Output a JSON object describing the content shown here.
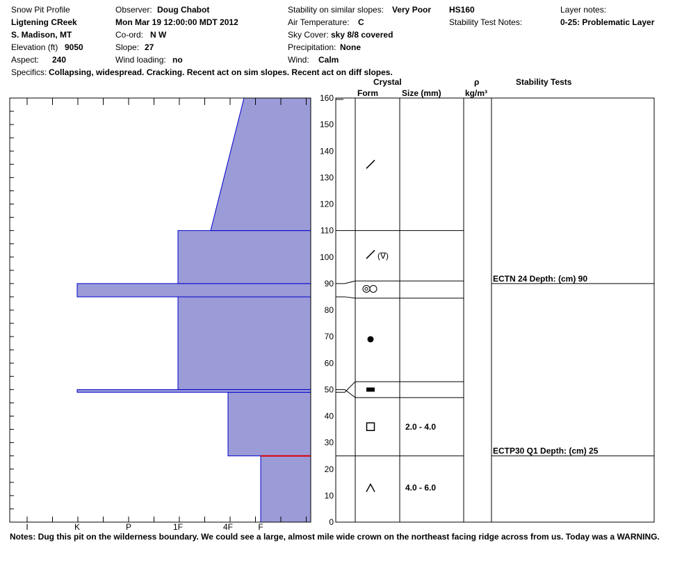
{
  "header": {
    "title": "Snow Pit Profile",
    "location": "Ligtening CReek",
    "region": "S. Madison, MT",
    "elevation_label": "Elevation (ft)",
    "elevation": "9050",
    "aspect_label": "Aspect:",
    "aspect": "240",
    "specifics_label": "Specifics:",
    "specifics": "Collapsing, widespread. Cracking. Recent act on sim slopes. Recent act on diff slopes.",
    "observer_label": "Observer:",
    "observer": "Doug Chabot",
    "date": "Mon Mar 19 12:00:00 MDT 2012",
    "coord_label": "Co-ord:",
    "coord": "N  W",
    "slope_label": "Slope:",
    "slope": "27",
    "wind_loading_label": "Wind loading:",
    "wind_loading": "no",
    "stability_label": "Stability on similar slopes:",
    "stability": "Very Poor",
    "air_temp_label": "Air Temperature:",
    "air_temp": "C",
    "sky_label": "Sky Cover:",
    "sky": "sky 8/8 covered",
    "precip_label": "Precipitation:",
    "precip": "None",
    "wind_label": "Wind:",
    "wind": "Calm",
    "hs": "HS160",
    "stability_test_notes_label": "Stability Test Notes:",
    "layer_notes_label": "Layer notes:",
    "layer_notes": "0-25: Problematic Layer"
  },
  "columns": {
    "crystal": "Crystal",
    "form": "Form",
    "size": "Size (mm)",
    "rho": "ρ",
    "density_unit": "kg/m³",
    "stability_tests": "Stability Tests"
  },
  "notes": "Notes:  Dug this pit on the wilderness boundary. We could see a large, almost mile wide crown on the northeast facing ridge across from us.  Today was a WARNING.",
  "colors": {
    "hardness_fill": "#9b9bd8",
    "hardness_edge": "#0000cc",
    "test_line": "#dd0000"
  },
  "chart_data": {
    "type": "area",
    "ylabel": "",
    "ylim": [
      0,
      160
    ],
    "y_ticks": [
      0,
      10,
      20,
      30,
      40,
      50,
      60,
      70,
      80,
      90,
      100,
      110,
      120,
      130,
      140,
      150,
      160
    ],
    "hardness_scale": [
      "I",
      "K",
      "P",
      "1F",
      "4F",
      "F"
    ],
    "hardness_profile": [
      {
        "bottom": 0,
        "top": 25,
        "hardness_bottom": "F",
        "hardness_top": "F"
      },
      {
        "bottom": 25,
        "top": 49,
        "hardness_bottom": "4F",
        "hardness_top": "4F"
      },
      {
        "bottom": 49,
        "top": 50,
        "hardness_bottom": "K",
        "hardness_top": "K"
      },
      {
        "bottom": 50,
        "top": 85,
        "hardness_bottom": "1F",
        "hardness_top": "1F"
      },
      {
        "bottom": 85,
        "top": 90,
        "hardness_bottom": "K",
        "hardness_top": "K"
      },
      {
        "bottom": 90,
        "top": 110,
        "hardness_bottom": "1F",
        "hardness_top": "1F"
      },
      {
        "bottom": 110,
        "top": 160,
        "hardness_bottom": "1F+",
        "hardness_top": "F-"
      }
    ],
    "layer_boundaries": [
      110,
      91,
      85,
      53,
      47,
      25
    ],
    "crystals": [
      {
        "depth": 135,
        "form": "precipitation-particles",
        "size": ""
      },
      {
        "depth": 101,
        "form": "decomposing-and-surface-hoar",
        "size": ""
      },
      {
        "depth": 88,
        "form": "melt-forms",
        "size": ""
      },
      {
        "depth": 69,
        "form": "rounded-grains",
        "size": ""
      },
      {
        "depth": 50,
        "form": "ice-formation",
        "size": ""
      },
      {
        "depth": 36,
        "form": "faceted-crystals",
        "size": "2.0 - 4.0"
      },
      {
        "depth": 13,
        "form": "depth-hoar",
        "size": "4.0 - 6.0"
      }
    ],
    "stability_tests": [
      {
        "depth": 90,
        "label": "ECTN 24   Depth: (cm) 90"
      },
      {
        "depth": 25,
        "label": "ECTP30 Q1 Depth: (cm) 25"
      }
    ]
  }
}
